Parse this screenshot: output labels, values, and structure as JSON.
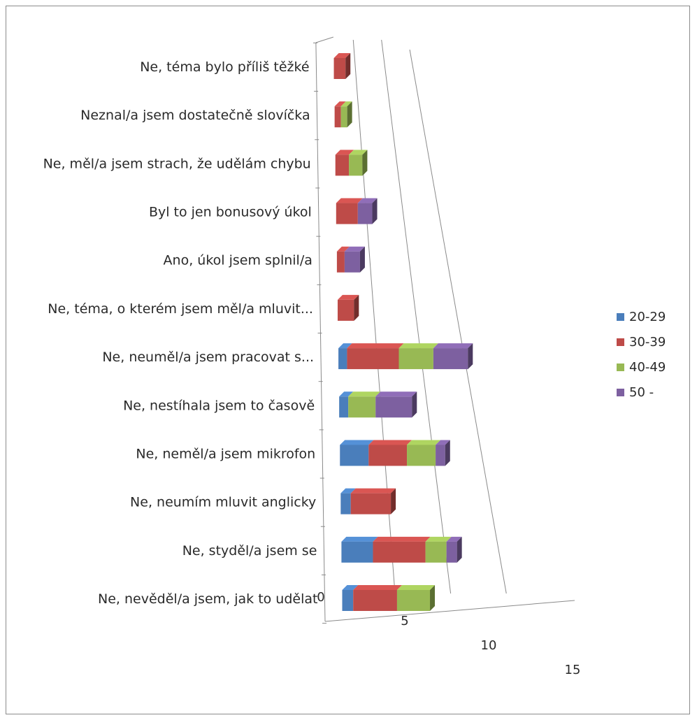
{
  "chart_data": {
    "type": "bar",
    "stacked": true,
    "orientation": "horizontal",
    "three_d": true,
    "categories": [
      "Ne, téma bylo příliš těžké",
      "Neznal/a jsem dostatečně slovíčka",
      "Ne, měl/a jsem strach, že udělám chybu",
      "Byl to jen bonusový úkol",
      "Ano, úkol jsem splnil/a",
      "Ne, téma, o kterém jsem měl/a mluvit...",
      "Ne, neuměl/a jsem pracovat s...",
      "Ne, nestíhala jsem to časově",
      "Ne, neměl/a jsem mikrofon",
      "Ne, neumím mluvit anglicky",
      "Ne, styděl/a jsem se",
      "Ne, nevěděl/a jsem, jak to udělat"
    ],
    "series": [
      {
        "name": "20-29",
        "color": "#4a7ebb",
        "values": [
          0,
          0,
          0,
          0,
          0,
          0,
          1,
          1,
          3,
          1,
          3,
          1
        ]
      },
      {
        "name": "30-39",
        "color": "#be4b48",
        "values": [
          2,
          1,
          2,
          3,
          1,
          2,
          6,
          0,
          4,
          4,
          5,
          4
        ]
      },
      {
        "name": "40-49",
        "color": "#98b954",
        "values": [
          0,
          1,
          2,
          0,
          0,
          0,
          4,
          3,
          3,
          0,
          2,
          3
        ]
      },
      {
        "name": "50 -",
        "color": "#7d60a0",
        "values": [
          0,
          0,
          0,
          2,
          2,
          0,
          4,
          4,
          1,
          0,
          1,
          0
        ]
      }
    ],
    "x_ticks": [
      "0",
      "5",
      "10",
      "15"
    ],
    "xlim": [
      0,
      15
    ],
    "grid": true,
    "legend_position": "right"
  }
}
